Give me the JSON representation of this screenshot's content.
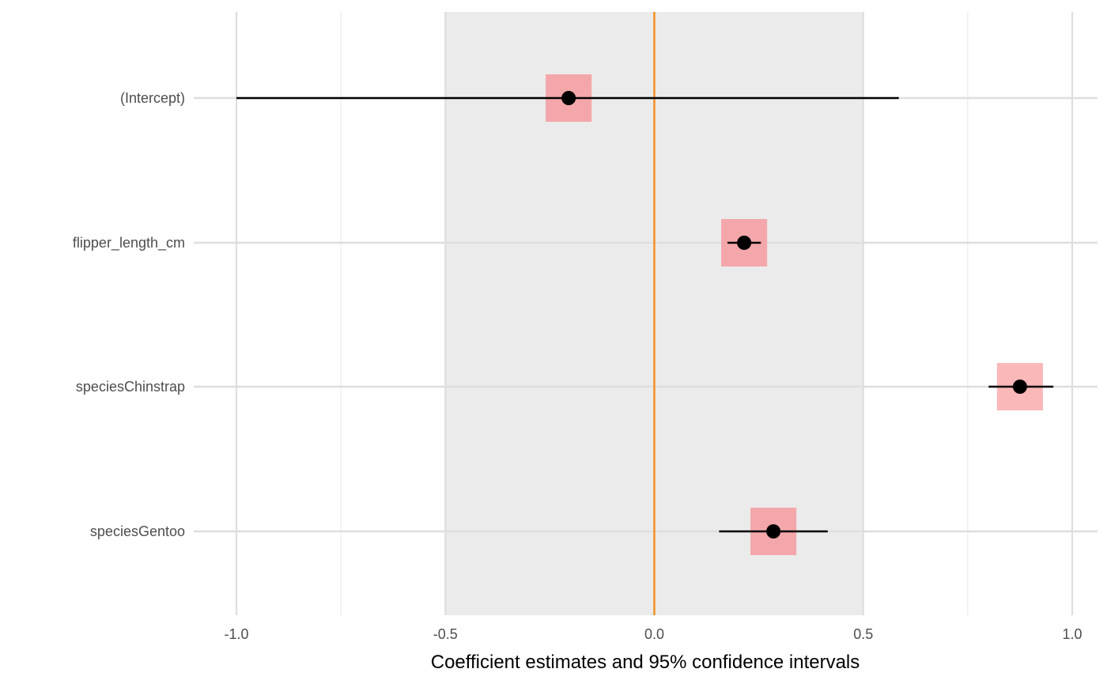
{
  "chart_data": {
    "type": "forest",
    "title": "",
    "xlabel": "Coefficient estimates and 95% confidence intervals",
    "ylabel": "",
    "xlim": [
      -1.0,
      1.0
    ],
    "x_ticks": [
      -1.0,
      -0.5,
      0.0,
      0.5,
      1.0
    ],
    "x_tick_labels": [
      "-1.0",
      "-0.5",
      "0.0",
      "0.5",
      "1.0"
    ],
    "x_minor_ticks": [
      -0.75,
      -0.25,
      0.25,
      0.75
    ],
    "shaded_region": [
      -0.5,
      0.5
    ],
    "reference_line": 0.0,
    "grid": true,
    "terms": [
      {
        "label": "(Intercept)",
        "estimate": -0.205,
        "ci_low": -1.0,
        "ci_high": 0.585,
        "box_low": -0.26,
        "box_high": -0.15
      },
      {
        "label": "flipper_length_cm",
        "estimate": 0.215,
        "ci_low": 0.175,
        "ci_high": 0.255,
        "box_low": 0.16,
        "box_high": 0.27
      },
      {
        "label": "speciesChinstrap",
        "estimate": 0.875,
        "ci_low": 0.8,
        "ci_high": 0.955,
        "box_low": 0.82,
        "box_high": 0.93
      },
      {
        "label": "speciesGentoo",
        "estimate": 0.285,
        "ci_low": 0.155,
        "ci_high": 0.415,
        "box_low": 0.23,
        "box_high": 0.34
      }
    ]
  },
  "colors": {
    "shade": "#ebebeb",
    "grid_major": "#dedede",
    "grid_minor": "#ebebeb",
    "reference_line": "#f28e1c",
    "box": "#f4a3a6",
    "box_highlight": "#fbb4b4",
    "ci_line": "#000000",
    "point": "#000000"
  }
}
